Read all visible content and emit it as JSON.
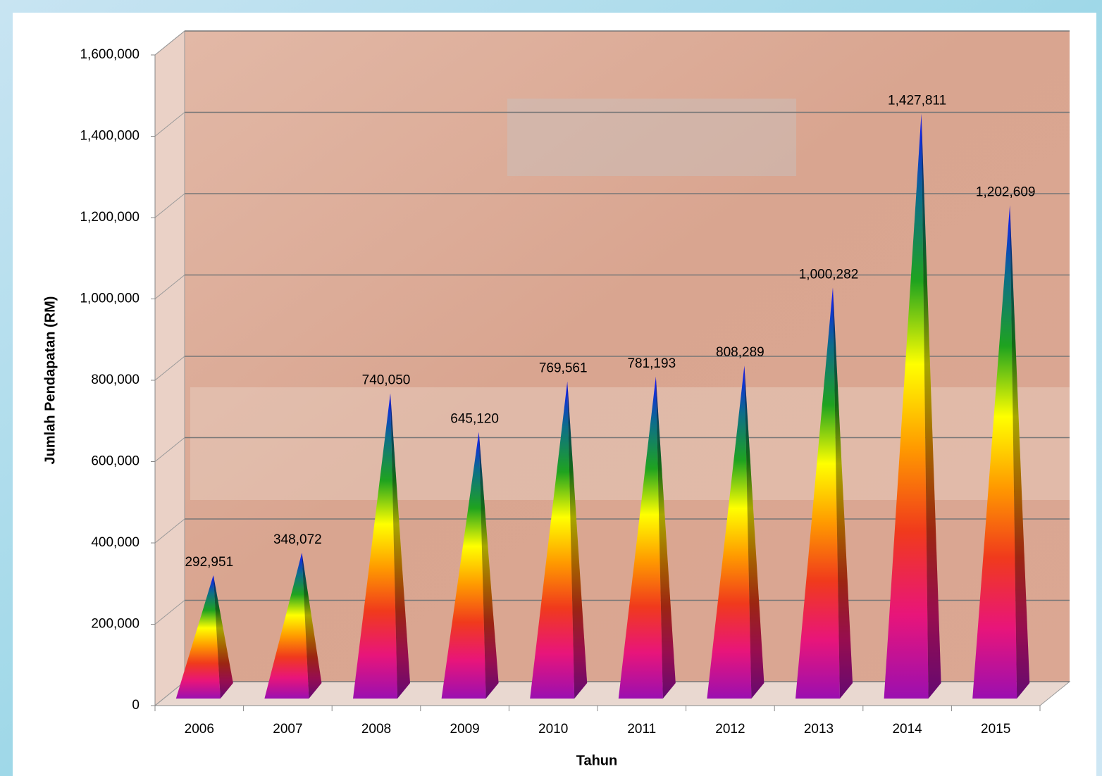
{
  "chart_data": {
    "type": "pyramid3d",
    "x_label": "Tahun",
    "y_label": "Jumlah Pendapatan (RM)",
    "categories": [
      "2006",
      "2007",
      "2008",
      "2009",
      "2010",
      "2011",
      "2012",
      "2013",
      "2014",
      "2015"
    ],
    "values": [
      292951,
      348072,
      740050,
      645120,
      769561,
      781193,
      808289,
      1000282,
      1427811,
      1202609
    ],
    "value_labels": [
      "292,951",
      "348,072",
      "740,050",
      "645,120",
      "769,561",
      "781,193",
      "808,289",
      "1,000,282",
      "1,427,811",
      "1,202,609"
    ],
    "ylim": [
      0,
      1600000
    ],
    "yticks": [
      0,
      {
        "value": 200000,
        "label": "200,000"
      },
      {
        "value": 400000,
        "label": "400,000"
      },
      {
        "value": 600000,
        "label": "600,000"
      },
      {
        "value": 800000,
        "label": "800,000"
      },
      {
        "value": 1000000,
        "label": "1,000,000"
      },
      {
        "value": 1200000,
        "label": "1,200,000"
      },
      {
        "value": 1400000,
        "label": "1,400,000"
      },
      {
        "value": 1600000,
        "label": "1,600,000"
      }
    ],
    "grid": true,
    "colors": [
      "#9b0fb0",
      "#e8157a",
      "#f03a1c",
      "#ff9a00",
      "#ffff00",
      "#1fa31f",
      "#0c6e8a",
      "#1010ff"
    ]
  }
}
